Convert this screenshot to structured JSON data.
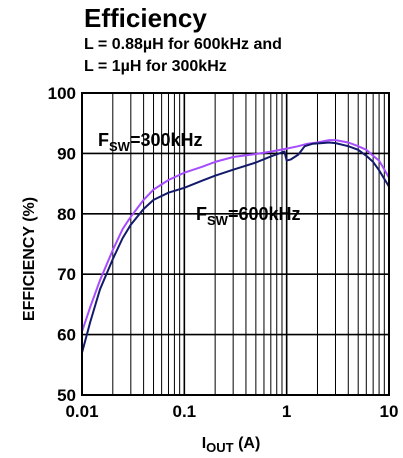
{
  "chart_data": {
    "type": "line",
    "title": "Efficiency",
    "subtitle_lines": [
      "L = 0.88µH for 600kHz and",
      "L = 1µH for 300kHz"
    ],
    "xlabel": {
      "base": "I",
      "sub": "OUT",
      "suffix": " (A)"
    },
    "ylabel": "EFFICIENCY (%)",
    "x_scale": "log",
    "xlim": [
      0.01,
      10
    ],
    "ylim": [
      50,
      100
    ],
    "x_ticks": [
      0.01,
      0.1,
      1,
      10
    ],
    "x_tick_labels": [
      "0.01",
      "0.1",
      "1",
      "10"
    ],
    "y_ticks": [
      50,
      60,
      70,
      80,
      90,
      100
    ],
    "y_tick_labels": [
      "50",
      "60",
      "70",
      "80",
      "90",
      "100"
    ],
    "grid": true,
    "series": [
      {
        "key": "sw300",
        "color": "#a64dff",
        "annotation": {
          "pre": "F",
          "sub": "SW",
          "post": "=300kHz"
        },
        "x": [
          0.01,
          0.012,
          0.015,
          0.02,
          0.025,
          0.03,
          0.04,
          0.05,
          0.07,
          0.1,
          0.15,
          0.2,
          0.3,
          0.5,
          0.7,
          1.0,
          1.3,
          1.6,
          2.0,
          2.6,
          3.0,
          4.0,
          5.0,
          6.0,
          7.0,
          8.0,
          10.0
        ],
        "y": [
          60.5,
          64.5,
          69.0,
          74.0,
          77.5,
          79.5,
          82.3,
          84.0,
          85.6,
          86.8,
          87.8,
          88.6,
          89.4,
          89.9,
          90.3,
          90.8,
          91.2,
          91.6,
          91.8,
          92.2,
          92.2,
          91.8,
          91.2,
          90.6,
          89.6,
          88.8,
          86.0
        ]
      },
      {
        "key": "sw600",
        "color": "#141a6b",
        "annotation": {
          "pre": "F",
          "sub": "SW",
          "post": "=600kHz"
        },
        "x": [
          0.01,
          0.012,
          0.015,
          0.02,
          0.025,
          0.03,
          0.04,
          0.05,
          0.07,
          0.1,
          0.15,
          0.2,
          0.3,
          0.5,
          0.7,
          0.95,
          1.0,
          1.1,
          1.3,
          1.5,
          1.8,
          2.2,
          2.6,
          3.0,
          4.0,
          5.0,
          6.0,
          7.0,
          8.0,
          10.0
        ],
        "y": [
          57.0,
          62.0,
          67.5,
          72.5,
          76.0,
          78.2,
          80.8,
          82.3,
          83.5,
          84.3,
          85.5,
          86.3,
          87.3,
          88.5,
          89.5,
          90.3,
          88.8,
          89.0,
          89.8,
          91.2,
          91.6,
          91.7,
          91.8,
          91.7,
          91.2,
          90.6,
          89.6,
          88.6,
          87.2,
          84.5
        ]
      }
    ]
  }
}
